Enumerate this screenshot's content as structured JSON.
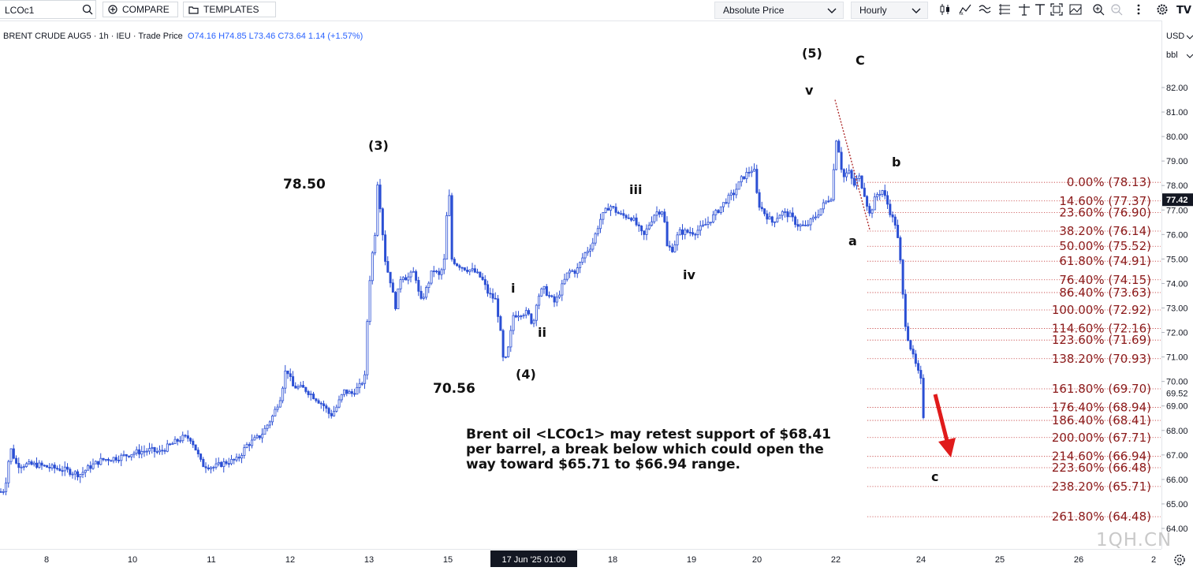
{
  "toolbar": {
    "symbol": "LCOc1",
    "compare_label": "COMPARE",
    "templates_label": "TEMPLATES",
    "price_type": "Absolute Price",
    "interval": "Hourly",
    "logo_text": "TV"
  },
  "legend": {
    "name": "BRENT CRUDE AUG5 · 1h · IEU · Trade Price",
    "open": "O74.16",
    "high": "H74.85",
    "low": "L73.46",
    "close": "C73.64",
    "change": "1.14 (+1.57%)"
  },
  "axis_header": {
    "currency": "USD",
    "unit": "bbl"
  },
  "comment": "Brent oil <LCOc1> may retest support of $68.41 per barrel, a break below which could open the way toward $65.71 to $66.94 range.",
  "watermark": "1QH.CN",
  "colors": {
    "candle": "#2b4fd4",
    "fib_text": "#8b1a1a",
    "fib_line": "#c33a3a",
    "arrow": "#e01b1b"
  },
  "annotations": {
    "w3": "(3)",
    "w4": "(4)",
    "w5": "(5)",
    "p7850": "78.50",
    "p7056": "70.56",
    "i": "i",
    "ii": "ii",
    "iii": "iii",
    "iv": "iv",
    "v": "v",
    "C": "C",
    "a_up": "a",
    "b": "b",
    "c_low": "c"
  },
  "chart_data": {
    "type": "candlestick",
    "title": "BRENT CRUDE AUG5",
    "xlabel": "",
    "ylabel": "",
    "ylim": [
      63.5,
      83.5
    ],
    "y_ticks": [
      "82.00",
      "81.00",
      "80.00",
      "79.00",
      "78.00",
      "77.00",
      "76.00",
      "75.00",
      "74.00",
      "73.00",
      "72.00",
      "71.00",
      "70.00",
      "69.00",
      "68.00",
      "67.00",
      "66.00",
      "65.00",
      "64.00"
    ],
    "x_ticks": [
      "8",
      "10",
      "11",
      "12",
      "13",
      "15",
      "17 Jun '25  01:00",
      "18",
      "19",
      "20",
      "22",
      "24",
      "25",
      "26",
      "2"
    ],
    "last_price": "77.42",
    "hover_price": "69.52",
    "path": [
      [
        0,
        65.5
      ],
      [
        5,
        65.6
      ],
      [
        12,
        67.3
      ],
      [
        20,
        66.6
      ],
      [
        30,
        66.6
      ],
      [
        45,
        66.6
      ],
      [
        60,
        66.5
      ],
      [
        80,
        66.4
      ],
      [
        100,
        66.2
      ],
      [
        112,
        66.5
      ],
      [
        128,
        66.8
      ],
      [
        150,
        66.9
      ],
      [
        170,
        67.1
      ],
      [
        190,
        67.2
      ],
      [
        200,
        67.1
      ],
      [
        215,
        67.4
      ],
      [
        230,
        67.7
      ],
      [
        240,
        67.7
      ],
      [
        245,
        67.4
      ],
      [
        255,
        66.6
      ],
      [
        270,
        66.5
      ],
      [
        285,
        66.7
      ],
      [
        300,
        66.8
      ],
      [
        312,
        67.4
      ],
      [
        330,
        67.8
      ],
      [
        345,
        68.6
      ],
      [
        355,
        69.4
      ],
      [
        362,
        70.6
      ],
      [
        370,
        69.8
      ],
      [
        385,
        69.7
      ],
      [
        400,
        69.3
      ],
      [
        410,
        69.0
      ],
      [
        418,
        68.6
      ],
      [
        425,
        68.9
      ],
      [
        435,
        69.6
      ],
      [
        445,
        69.5
      ],
      [
        455,
        69.8
      ],
      [
        462,
        70.2
      ],
      [
        466,
        73.5
      ],
      [
        470,
        74.9
      ],
      [
        475,
        76.2
      ],
      [
        478,
        78.3
      ],
      [
        482,
        76.8
      ],
      [
        488,
        74.8
      ],
      [
        495,
        74.0
      ],
      [
        500,
        73.0
      ],
      [
        508,
        74.4
      ],
      [
        515,
        74.2
      ],
      [
        525,
        74.5
      ],
      [
        532,
        73.2
      ],
      [
        540,
        73.8
      ],
      [
        548,
        74.6
      ],
      [
        556,
        74.3
      ],
      [
        562,
        74.8
      ],
      [
        568,
        78.1
      ],
      [
        572,
        75.0
      ],
      [
        578,
        74.8
      ],
      [
        590,
        74.6
      ],
      [
        600,
        74.5
      ],
      [
        610,
        74.2
      ],
      [
        618,
        73.6
      ],
      [
        628,
        73.3
      ],
      [
        633,
        72.2
      ],
      [
        638,
        70.6
      ],
      [
        644,
        71.4
      ],
      [
        650,
        72.7
      ],
      [
        660,
        72.8
      ],
      [
        668,
        72.8
      ],
      [
        675,
        72.3
      ],
      [
        680,
        73.4
      ],
      [
        688,
        73.8
      ],
      [
        695,
        73.5
      ],
      [
        703,
        73.2
      ],
      [
        712,
        73.9
      ],
      [
        720,
        74.5
      ],
      [
        730,
        74.5
      ],
      [
        740,
        75.2
      ],
      [
        750,
        75.6
      ],
      [
        760,
        76.6
      ],
      [
        772,
        77.2
      ],
      [
        785,
        76.8
      ],
      [
        800,
        76.7
      ],
      [
        808,
        76.3
      ],
      [
        815,
        75.9
      ],
      [
        822,
        76.4
      ],
      [
        830,
        76.9
      ],
      [
        840,
        77.0
      ],
      [
        845,
        75.5
      ],
      [
        852,
        75.4
      ],
      [
        860,
        76.1
      ],
      [
        870,
        76.1
      ],
      [
        880,
        76.1
      ],
      [
        890,
        76.3
      ],
      [
        900,
        76.6
      ],
      [
        910,
        77.0
      ],
      [
        920,
        77.4
      ],
      [
        930,
        77.7
      ],
      [
        940,
        78.3
      ],
      [
        950,
        78.6
      ],
      [
        955,
        78.7
      ],
      [
        960,
        77.3
      ],
      [
        968,
        76.9
      ],
      [
        978,
        76.5
      ],
      [
        990,
        76.9
      ],
      [
        1000,
        76.8
      ],
      [
        1010,
        76.4
      ],
      [
        1020,
        76.3
      ],
      [
        1035,
        76.8
      ],
      [
        1045,
        77.3
      ],
      [
        1055,
        77.6
      ],
      [
        1058,
        80.1
      ],
      [
        1062,
        79.6
      ],
      [
        1068,
        78.3
      ],
      [
        1075,
        78.6
      ],
      [
        1082,
        78.0
      ],
      [
        1088,
        78.4
      ],
      [
        1095,
        77.7
      ],
      [
        1102,
        76.8
      ],
      [
        1110,
        77.6
      ],
      [
        1118,
        77.8
      ],
      [
        1125,
        77.2
      ],
      [
        1130,
        76.7
      ],
      [
        1135,
        76.4
      ],
      [
        1140,
        75.2
      ],
      [
        1144,
        73.5
      ],
      [
        1148,
        72.1
      ],
      [
        1152,
        71.6
      ],
      [
        1157,
        71.0
      ],
      [
        1162,
        70.5
      ],
      [
        1167,
        70.0
      ],
      [
        1170,
        68.6
      ],
      [
        1173,
        69.4
      ]
    ],
    "fib_levels": [
      {
        "label": "0.00% (78.13)",
        "pct": 0,
        "price": 78.13
      },
      {
        "label": "14.60% (77.37)",
        "pct": 14.6,
        "price": 77.37
      },
      {
        "label": "23.60% (76.90)",
        "pct": 23.6,
        "price": 76.9
      },
      {
        "label": "38.20% (76.14)",
        "pct": 38.2,
        "price": 76.14
      },
      {
        "label": "50.00% (75.52)",
        "pct": 50,
        "price": 75.52
      },
      {
        "label": "61.80% (74.91)",
        "pct": 61.8,
        "price": 74.91
      },
      {
        "label": "76.40% (74.15)",
        "pct": 76.4,
        "price": 74.15
      },
      {
        "label": "86.40% (73.63)",
        "pct": 86.4,
        "price": 73.63
      },
      {
        "label": "100.00% (72.92)",
        "pct": 100,
        "price": 72.92
      },
      {
        "label": "114.60% (72.16)",
        "pct": 114.6,
        "price": 72.16
      },
      {
        "label": "123.60% (71.69)",
        "pct": 123.6,
        "price": 71.69
      },
      {
        "label": "138.20% (70.93)",
        "pct": 138.2,
        "price": 70.93
      },
      {
        "label": "161.80% (69.70)",
        "pct": 161.8,
        "price": 69.7
      },
      {
        "label": "176.40% (68.94)",
        "pct": 176.4,
        "price": 68.94
      },
      {
        "label": "186.40% (68.41)",
        "pct": 186.4,
        "price": 68.41
      },
      {
        "label": "200.00% (67.71)",
        "pct": 200,
        "price": 67.71
      },
      {
        "label": "214.60% (66.94)",
        "pct": 214.6,
        "price": 66.94
      },
      {
        "label": "223.60% (66.48)",
        "pct": 223.6,
        "price": 66.48
      },
      {
        "label": "238.20% (65.71)",
        "pct": 238.2,
        "price": 65.71
      },
      {
        "label": "261.80% (64.48)",
        "pct": 261.8,
        "price": 64.48
      }
    ],
    "wave_trendline": {
      "from": 81.5,
      "to": 76.2
    }
  }
}
